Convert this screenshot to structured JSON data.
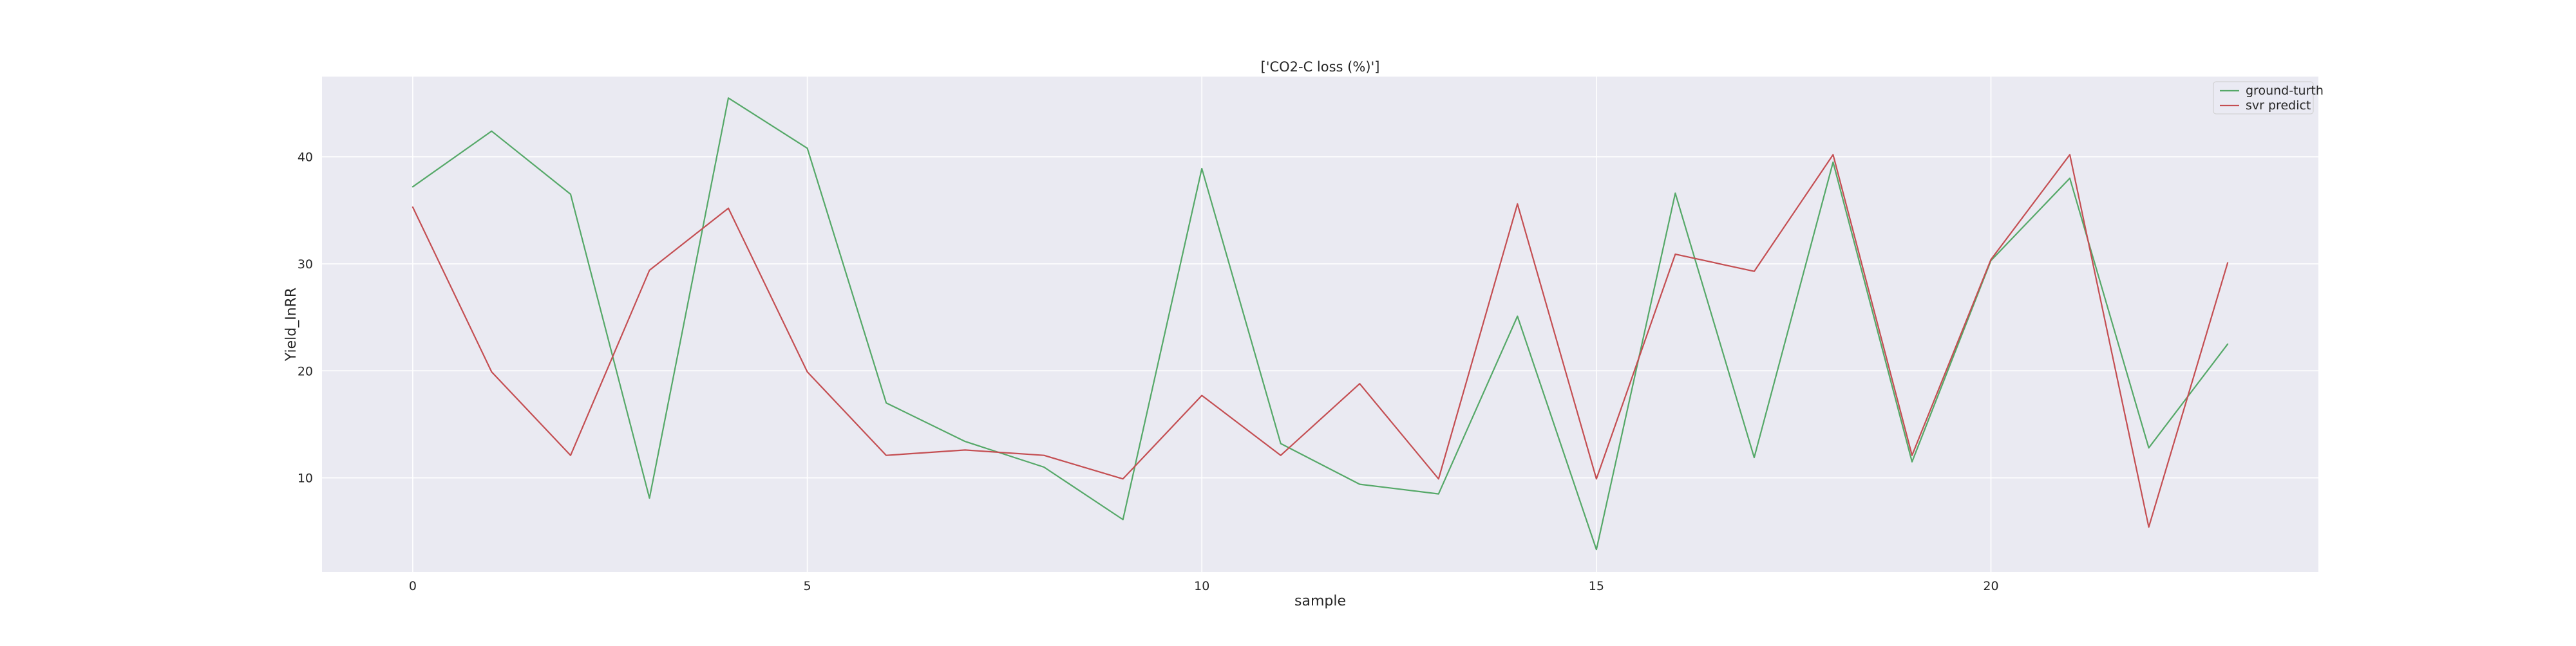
{
  "chart_data": {
    "type": "line",
    "title": "['CO2-C loss (%)']",
    "xlabel": "sample",
    "ylabel": "Yield_InRR",
    "x": [
      0,
      1,
      2,
      3,
      4,
      5,
      6,
      7,
      8,
      9,
      10,
      11,
      12,
      13,
      14,
      15,
      16,
      17,
      18,
      19,
      20,
      21,
      22,
      23
    ],
    "xlim": [
      -1.15,
      24.15
    ],
    "ylim": [
      1.2,
      47.5
    ],
    "xticks": [
      0,
      5,
      10,
      15,
      20
    ],
    "yticks": [
      10,
      20,
      30,
      40
    ],
    "grid": true,
    "legend_position": "top-right",
    "series": [
      {
        "name": "ground-turth",
        "color": "#55a868",
        "values": [
          37.2,
          42.4,
          36.5,
          8.1,
          45.5,
          40.8,
          17.0,
          13.4,
          11.0,
          6.1,
          38.9,
          13.2,
          9.4,
          8.5,
          25.1,
          3.3,
          36.6,
          11.9,
          39.5,
          11.5,
          30.3,
          38.0,
          12.8,
          22.5
        ]
      },
      {
        "name": "svr predict",
        "color": "#c44e52",
        "values": [
          35.3,
          19.9,
          12.1,
          29.4,
          35.2,
          19.9,
          12.1,
          12.6,
          12.1,
          9.9,
          17.7,
          12.1,
          18.8,
          9.9,
          35.6,
          9.9,
          30.9,
          29.3,
          40.2,
          12.1,
          30.4,
          40.2,
          5.4,
          30.1
        ]
      }
    ]
  }
}
